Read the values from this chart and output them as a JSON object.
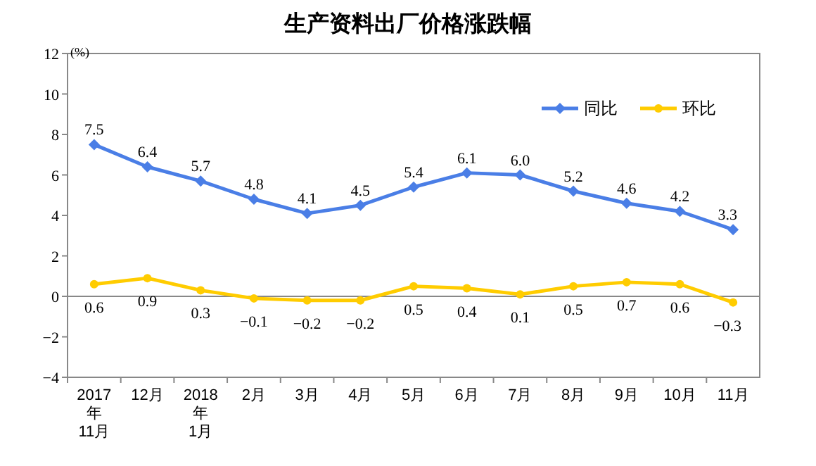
{
  "chart_data": {
    "type": "line",
    "title": "生产资料出厂价格涨跌幅",
    "ylabel": "(%)",
    "categories": [
      "2017\n年\n11月",
      "12月",
      "2018\n年\n1月",
      "2月",
      "3月",
      "4月",
      "5月",
      "6月",
      "7月",
      "8月",
      "9月",
      "10月",
      "11月"
    ],
    "series": [
      {
        "name": "同比",
        "color": "#4a7ee6",
        "marker": "diamond",
        "values": [
          7.5,
          6.4,
          5.7,
          4.8,
          4.1,
          4.5,
          5.4,
          6.1,
          6.0,
          5.2,
          4.6,
          4.2,
          3.3
        ],
        "value_labels": [
          "7.5",
          "6.4",
          "5.7",
          "4.8",
          "4.1",
          "4.5",
          "5.4",
          "6.1",
          "6.0",
          "5.2",
          "4.6",
          "4.2",
          "3.3"
        ]
      },
      {
        "name": "环比",
        "color": "#ffcc00",
        "marker": "circle",
        "values": [
          0.6,
          0.9,
          0.3,
          -0.1,
          -0.2,
          -0.2,
          0.5,
          0.4,
          0.1,
          0.5,
          0.7,
          0.6,
          -0.3
        ]
      }
    ],
    "ylim": [
      -4,
      12
    ],
    "yticks": [
      -4,
      -2,
      0,
      2,
      4,
      6,
      8,
      10,
      12
    ],
    "ref_lines": [
      {
        "axis": "y",
        "value": 0
      }
    ],
    "legend": "top right",
    "data_labels": true
  }
}
